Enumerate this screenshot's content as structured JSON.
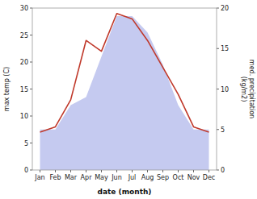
{
  "chart_data": {
    "type": "line",
    "categories": [
      "Jan",
      "Feb",
      "Mar",
      "Apr",
      "May",
      "Jun",
      "Jul",
      "Aug",
      "Sep",
      "Oct",
      "Nov",
      "Dec"
    ],
    "xlabel": "date (month)",
    "ylabel": "max temp (C)",
    "y2label": "med. precipitation\n(kg/m2)",
    "series": [
      {
        "type": "area",
        "axis": "y2",
        "color": "#c5caf0",
        "values": [
          5,
          5,
          8,
          9,
          14,
          19,
          19,
          17,
          13,
          8,
          5,
          5
        ]
      },
      {
        "type": "line",
        "color": "#c0392b",
        "values": [
          7,
          8,
          13,
          24,
          22,
          29,
          28,
          24,
          19,
          14,
          8,
          7
        ]
      }
    ],
    "ylim": [
      0,
      30
    ],
    "yticks": [
      0,
      5,
      10,
      15,
      20,
      25,
      30
    ],
    "y2lim": [
      0,
      20
    ],
    "y2ticks": [
      0,
      5,
      10,
      15,
      20
    ],
    "grid": false
  }
}
